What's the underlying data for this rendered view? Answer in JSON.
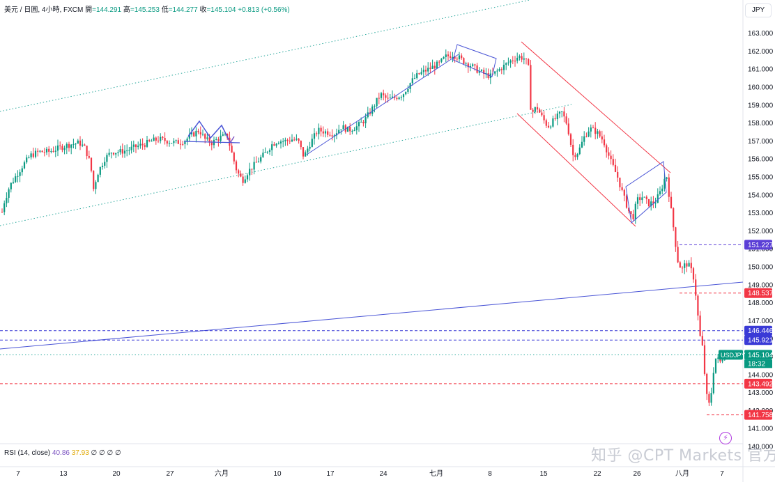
{
  "legend": {
    "symbol": "美元 / 日圓, 4小時, FXCM",
    "open_label": "開",
    "open": "=144.291",
    "high_label": "高",
    "high": "=145.253",
    "low_label": "低",
    "low": "=144.277",
    "close_label": "收",
    "close": "=145.104",
    "change": "+0.813 (+0.56%)"
  },
  "currency_button": "JPY",
  "rsi_legend": {
    "label": "RSI (14, close)",
    "v1": "40.86",
    "v2": "37.93",
    "empties": "∅ ∅ ∅ ∅"
  },
  "watermark": "知乎 @CPT Markets 官方",
  "colors": {
    "up": "#089981",
    "down": "#f23645",
    "trend": "#4a55d6",
    "channel": "#f23645",
    "dotted_green": "#26a69a"
  },
  "chart_data": {
    "type": "candlestick",
    "instrument": "USDJPY",
    "ylim": [
      140,
      163
    ],
    "y_ticks": [
      "163.000",
      "162.000",
      "161.000",
      "160.000",
      "159.000",
      "158.000",
      "157.000",
      "156.000",
      "155.000",
      "154.000",
      "153.000",
      "152.000",
      "151.000",
      "150.000",
      "149.000",
      "148.000",
      "147.000",
      "146.000",
      "145.000",
      "144.000",
      "143.000",
      "142.000",
      "141.000",
      "140.000"
    ],
    "x_ticks": [
      "7",
      "13",
      "20",
      "27",
      "六月",
      "10",
      "17",
      "24",
      "七月",
      "8",
      "15",
      "22",
      "26",
      "八月",
      "7"
    ],
    "price_series": [
      [
        0,
        152.5
      ],
      [
        6,
        153.6
      ],
      [
        14,
        154.5
      ],
      [
        22,
        155.0
      ],
      [
        32,
        155.6
      ],
      [
        44,
        156.2
      ],
      [
        56,
        156.4
      ],
      [
        70,
        156.4
      ],
      [
        84,
        156.6
      ],
      [
        100,
        156.8
      ],
      [
        114,
        156.9
      ],
      [
        122,
        156.6
      ],
      [
        130,
        155.7
      ],
      [
        134,
        154.3
      ],
      [
        140,
        155.2
      ],
      [
        150,
        156.0
      ],
      [
        160,
        156.4
      ],
      [
        172,
        156.4
      ],
      [
        184,
        156.5
      ],
      [
        196,
        156.7
      ],
      [
        206,
        156.8
      ],
      [
        218,
        157.0
      ],
      [
        228,
        157.1
      ],
      [
        240,
        157.0
      ],
      [
        252,
        156.9
      ],
      [
        264,
        157.0
      ],
      [
        274,
        157.3
      ],
      [
        286,
        157.6
      ],
      [
        294,
        157.1
      ],
      [
        304,
        156.9
      ],
      [
        316,
        157.2
      ],
      [
        326,
        157.3
      ],
      [
        332,
        156.4
      ],
      [
        340,
        155.3
      ],
      [
        348,
        154.8
      ],
      [
        356,
        155.3
      ],
      [
        368,
        155.8
      ],
      [
        380,
        156.3
      ],
      [
        390,
        156.8
      ],
      [
        398,
        157.0
      ],
      [
        410,
        157.0
      ],
      [
        420,
        157.1
      ],
      [
        428,
        157.0
      ],
      [
        436,
        156.1
      ],
      [
        444,
        156.8
      ],
      [
        456,
        157.6
      ],
      [
        468,
        157.5
      ],
      [
        480,
        157.4
      ],
      [
        490,
        157.8
      ],
      [
        500,
        157.6
      ],
      [
        512,
        157.8
      ],
      [
        524,
        158.2
      ],
      [
        534,
        158.8
      ],
      [
        546,
        159.6
      ],
      [
        556,
        159.3
      ],
      [
        566,
        159.4
      ],
      [
        578,
        159.6
      ],
      [
        590,
        160.3
      ],
      [
        600,
        160.7
      ],
      [
        610,
        160.9
      ],
      [
        620,
        161.1
      ],
      [
        630,
        161.3
      ],
      [
        640,
        161.7
      ],
      [
        650,
        161.8
      ],
      [
        660,
        161.6
      ],
      [
        666,
        161.4
      ],
      [
        676,
        161.2
      ],
      [
        686,
        160.9
      ],
      [
        696,
        160.7
      ],
      [
        704,
        160.6
      ],
      [
        714,
        160.9
      ],
      [
        724,
        161.2
      ],
      [
        734,
        161.5
      ],
      [
        744,
        161.7
      ],
      [
        752,
        161.6
      ],
      [
        758,
        161.2
      ],
      [
        762,
        158.5
      ],
      [
        770,
        158.9
      ],
      [
        778,
        158.3
      ],
      [
        786,
        157.8
      ],
      [
        796,
        158.2
      ],
      [
        806,
        158.6
      ],
      [
        814,
        157.9
      ],
      [
        822,
        156.2
      ],
      [
        830,
        156.4
      ],
      [
        838,
        157.2
      ],
      [
        846,
        157.7
      ],
      [
        856,
        157.5
      ],
      [
        866,
        157.0
      ],
      [
        876,
        155.9
      ],
      [
        886,
        155.0
      ],
      [
        894,
        154.0
      ],
      [
        902,
        153.1
      ],
      [
        908,
        152.7
      ],
      [
        914,
        153.7
      ],
      [
        922,
        153.9
      ],
      [
        930,
        153.5
      ],
      [
        940,
        153.6
      ],
      [
        948,
        154.2
      ],
      [
        956,
        155.2
      ],
      [
        962,
        153.4
      ],
      [
        968,
        151.7
      ],
      [
        972,
        150.4
      ],
      [
        978,
        149.8
      ],
      [
        984,
        150.2
      ],
      [
        990,
        150.0
      ],
      [
        996,
        149.3
      ],
      [
        1000,
        147.8
      ],
      [
        1004,
        146.2
      ],
      [
        1008,
        145.5
      ],
      [
        1012,
        143.6
      ],
      [
        1016,
        142.1
      ],
      [
        1020,
        142.8
      ],
      [
        1024,
        144.3
      ],
      [
        1028,
        145.1
      ],
      [
        1032,
        144.6
      ],
      [
        1036,
        144.9
      ],
      [
        1040,
        145.1
      ]
    ],
    "price_labels": [
      {
        "value": 151.227,
        "text": "151.227",
        "color": "#5b3fd6"
      },
      {
        "value": 148.537,
        "text": "148.537",
        "color": "#f23645"
      },
      {
        "value": 146.446,
        "text": "146.446",
        "color": "#3a3ad6"
      },
      {
        "value": 145.921,
        "text": "145.921",
        "color": "#3a3ad6"
      },
      {
        "value": 145.104,
        "text": "145.104",
        "color": "#089981",
        "tag": "USDJPY",
        "sub": "18:32"
      },
      {
        "value": 143.492,
        "text": "143.492",
        "color": "#f23645"
      },
      {
        "value": 141.758,
        "text": "141.758",
        "color": "#f23645"
      }
    ]
  }
}
